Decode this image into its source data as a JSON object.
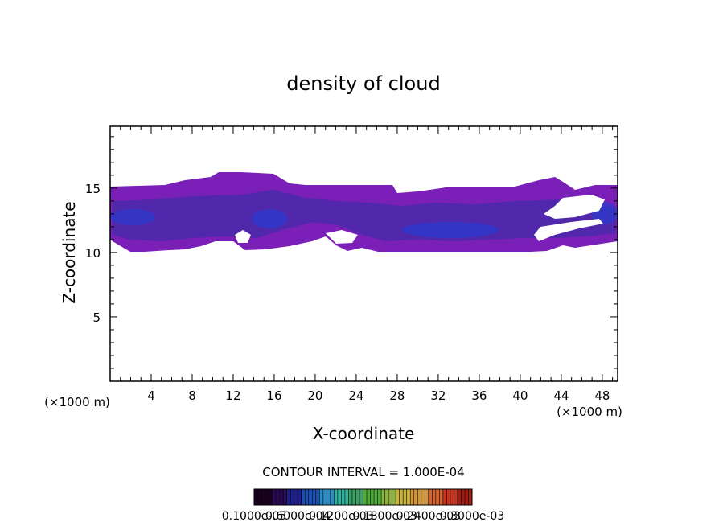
{
  "chart_data": {
    "type": "heatmap",
    "title": "density of cloud",
    "xlabel": "X-coordinate",
    "ylabel": "Z-coordinate",
    "x_unit": "(×1000 m)",
    "x_unit_right": "(×1000 m)",
    "xlim": [
      0,
      49.5
    ],
    "ylim": [
      0,
      19.8
    ],
    "xticks": [
      4,
      8,
      12,
      16,
      20,
      24,
      28,
      32,
      36,
      40,
      44,
      48
    ],
    "yticks": [
      5,
      10,
      15
    ],
    "contour_interval_text": "CONTOUR INTERVAL = 1.000E-04",
    "colorbar_labels": [
      "0.1000e-05",
      "0.6000e-04",
      "0.1200e-03",
      "0.1800e-03",
      "0.2400e-03",
      "0.3000e-03"
    ],
    "colorbar_colors": [
      "#1a0020",
      "#2a0a50",
      "#1e1e8c",
      "#1f50b4",
      "#2a8cc8",
      "#30b4a0",
      "#3ca064",
      "#50aa3c",
      "#8cb43c",
      "#c8b43c",
      "#d2963c",
      "#d26432",
      "#c8321e",
      "#a01e14"
    ],
    "cloud_color_main": "#7a1fb8",
    "cloud_color_inner": "#4a2aa8",
    "cloud_color_core": "#2a3ad0"
  }
}
